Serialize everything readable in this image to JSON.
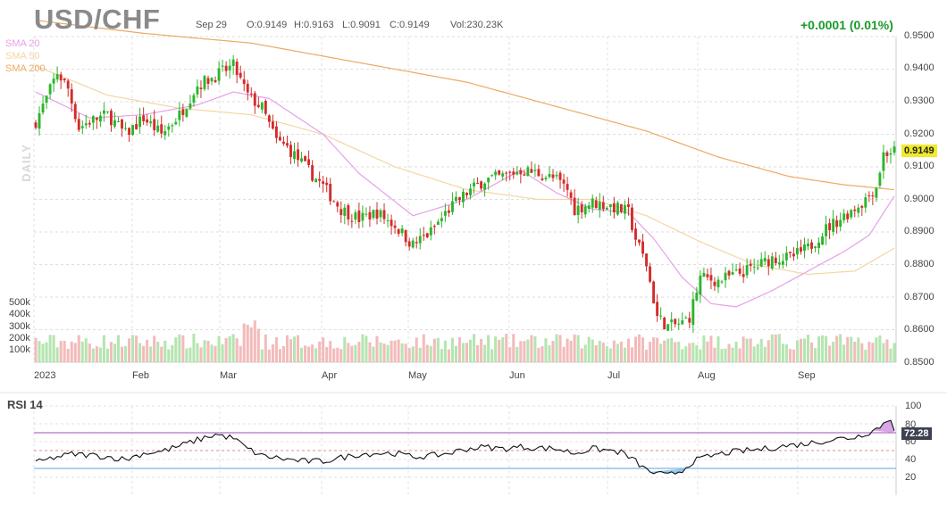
{
  "header": {
    "symbol": "USD/CHF",
    "date": "Sep 29",
    "open": "O:0.9149",
    "high": "H:0.9163",
    "low": "L:0.9091",
    "close": "C:0.9149",
    "volume": "Vol:230.23K",
    "change": "+0.0001 (0.01%)"
  },
  "sma": [
    {
      "label": "SMA 20",
      "color": "#e6a0e8"
    },
    {
      "label": "SMA 50",
      "color": "#f3d6a4"
    },
    {
      "label": "SMA 200",
      "color": "#eda964"
    }
  ],
  "side_label": "DAILY",
  "last_price_label": "0.9149",
  "rsi": {
    "title": "RSI 14",
    "last": "72.28",
    "overbought": 70,
    "oversold": 30
  },
  "colors": {
    "up": "#2bb52b",
    "down": "#d52b2b",
    "vol_up": "#b5e5b0",
    "vol_down": "#f3bbbb",
    "rsi_over": "#9d4fb8",
    "rsi_under": "#5ba3d8",
    "text_up": "#1a9a2a"
  },
  "chart_data": {
    "type": "candlestick",
    "title": "USD/CHF",
    "price_axis": {
      "min": 0.85,
      "max": 0.95,
      "ticks": [
        "0.9500",
        "0.9400",
        "0.9300",
        "0.9200",
        "0.9100",
        "0.9000",
        "0.8900",
        "0.8800",
        "0.8700",
        "0.8600",
        "0.8500"
      ]
    },
    "volume_axis": {
      "ticks": [
        "500k",
        "400k",
        "300k",
        "200k",
        "100k"
      ]
    },
    "rsi_axis": {
      "min": 0,
      "max": 100,
      "ticks": [
        "100",
        "80",
        "60",
        "40",
        "20"
      ]
    },
    "x_labels": [
      "2023",
      "Feb",
      "Mar",
      "Apr",
      "May",
      "Jun",
      "Jul",
      "Aug",
      "Sep"
    ],
    "close_keypoints": [
      [
        0,
        0.924
      ],
      [
        3,
        0.931
      ],
      [
        6,
        0.939
      ],
      [
        9,
        0.934
      ],
      [
        12,
        0.922
      ],
      [
        15,
        0.924
      ],
      [
        20,
        0.926
      ],
      [
        25,
        0.92
      ],
      [
        30,
        0.925
      ],
      [
        35,
        0.92
      ],
      [
        40,
        0.926
      ],
      [
        45,
        0.935
      ],
      [
        50,
        0.938
      ],
      [
        55,
        0.941
      ],
      [
        59,
        0.932
      ],
      [
        63,
        0.928
      ],
      [
        67,
        0.918
      ],
      [
        70,
        0.916
      ],
      [
        75,
        0.91
      ],
      [
        80,
        0.904
      ],
      [
        85,
        0.897
      ],
      [
        90,
        0.894
      ],
      [
        95,
        0.896
      ],
      [
        100,
        0.892
      ],
      [
        105,
        0.886
      ],
      [
        110,
        0.89
      ],
      [
        115,
        0.897
      ],
      [
        120,
        0.902
      ],
      [
        125,
        0.906
      ],
      [
        130,
        0.907
      ],
      [
        135,
        0.909
      ],
      [
        140,
        0.908
      ],
      [
        145,
        0.906
      ],
      [
        148,
        0.903
      ],
      [
        150,
        0.897
      ],
      [
        155,
        0.899
      ],
      [
        160,
        0.898
      ],
      [
        165,
        0.896
      ],
      [
        167,
        0.888
      ],
      [
        170,
        0.88
      ],
      [
        173,
        0.864
      ],
      [
        176,
        0.861
      ],
      [
        180,
        0.862
      ],
      [
        182,
        0.864
      ],
      [
        185,
        0.876
      ],
      [
        190,
        0.875
      ],
      [
        195,
        0.877
      ],
      [
        200,
        0.879
      ],
      [
        205,
        0.882
      ],
      [
        210,
        0.882
      ],
      [
        215,
        0.885
      ],
      [
        220,
        0.891
      ],
      [
        225,
        0.895
      ],
      [
        230,
        0.899
      ],
      [
        234,
        0.904
      ],
      [
        236,
        0.914
      ],
      [
        239,
        0.9149
      ]
    ],
    "rsi_keypoints": [
      [
        0,
        36
      ],
      [
        5,
        42
      ],
      [
        10,
        46
      ],
      [
        15,
        45
      ],
      [
        20,
        43
      ],
      [
        25,
        40
      ],
      [
        30,
        47
      ],
      [
        35,
        49
      ],
      [
        40,
        55
      ],
      [
        45,
        62
      ],
      [
        50,
        68
      ],
      [
        55,
        64
      ],
      [
        59,
        52
      ],
      [
        63,
        44
      ],
      [
        67,
        42
      ],
      [
        70,
        40
      ],
      [
        75,
        38
      ],
      [
        80,
        38
      ],
      [
        85,
        42
      ],
      [
        90,
        46
      ],
      [
        95,
        47
      ],
      [
        100,
        47
      ],
      [
        105,
        43
      ],
      [
        110,
        44
      ],
      [
        115,
        47
      ],
      [
        120,
        52
      ],
      [
        125,
        54
      ],
      [
        130,
        52
      ],
      [
        135,
        54
      ],
      [
        140,
        53
      ],
      [
        145,
        52
      ],
      [
        150,
        47
      ],
      [
        155,
        52
      ],
      [
        160,
        50
      ],
      [
        163,
        48
      ],
      [
        167,
        38
      ],
      [
        170,
        28
      ],
      [
        173,
        24
      ],
      [
        176,
        22
      ],
      [
        180,
        28
      ],
      [
        183,
        38
      ],
      [
        188,
        44
      ],
      [
        193,
        48
      ],
      [
        198,
        50
      ],
      [
        203,
        52
      ],
      [
        208,
        55
      ],
      [
        213,
        57
      ],
      [
        218,
        60
      ],
      [
        223,
        63
      ],
      [
        228,
        65
      ],
      [
        233,
        72
      ],
      [
        236,
        80
      ],
      [
        238,
        86
      ],
      [
        239,
        72.28
      ]
    ],
    "sma200_keypoints": [
      [
        0,
        0.955
      ],
      [
        30,
        0.951
      ],
      [
        60,
        0.948
      ],
      [
        90,
        0.942
      ],
      [
        120,
        0.936
      ],
      [
        150,
        0.927
      ],
      [
        170,
        0.921
      ],
      [
        190,
        0.913
      ],
      [
        210,
        0.907
      ],
      [
        225,
        0.9045
      ],
      [
        239,
        0.903
      ]
    ],
    "sma50_keypoints": [
      [
        0,
        0.941
      ],
      [
        20,
        0.932
      ],
      [
        40,
        0.928
      ],
      [
        60,
        0.926
      ],
      [
        80,
        0.92
      ],
      [
        100,
        0.91
      ],
      [
        120,
        0.903
      ],
      [
        140,
        0.9
      ],
      [
        155,
        0.9
      ],
      [
        170,
        0.895
      ],
      [
        185,
        0.887
      ],
      [
        200,
        0.88
      ],
      [
        215,
        0.877
      ],
      [
        228,
        0.878
      ],
      [
        239,
        0.885
      ]
    ],
    "sma20_keypoints": [
      [
        0,
        0.933
      ],
      [
        15,
        0.925
      ],
      [
        30,
        0.926
      ],
      [
        45,
        0.929
      ],
      [
        55,
        0.933
      ],
      [
        65,
        0.931
      ],
      [
        80,
        0.92
      ],
      [
        90,
        0.908
      ],
      [
        105,
        0.895
      ],
      [
        120,
        0.9
      ],
      [
        135,
        0.909
      ],
      [
        145,
        0.902
      ],
      [
        155,
        0.897
      ],
      [
        165,
        0.896
      ],
      [
        172,
        0.888
      ],
      [
        180,
        0.876
      ],
      [
        188,
        0.868
      ],
      [
        195,
        0.867
      ],
      [
        205,
        0.872
      ],
      [
        215,
        0.878
      ],
      [
        225,
        0.884
      ],
      [
        232,
        0.889
      ],
      [
        239,
        0.901
      ]
    ]
  }
}
